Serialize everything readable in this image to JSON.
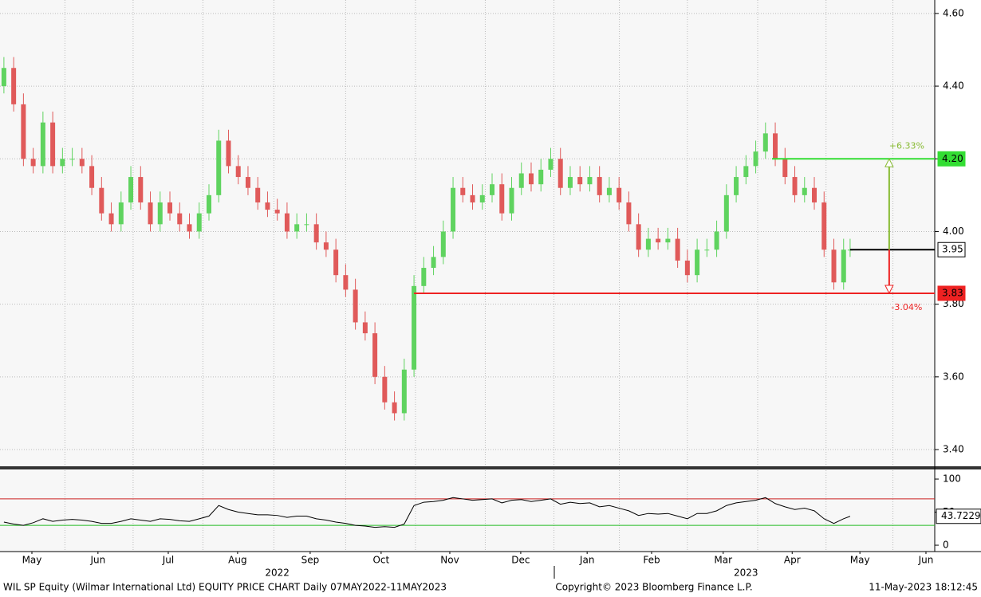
{
  "chart_data": {
    "type": "candlestick",
    "xlim": [
      -1.2,
      286
    ],
    "xticks": [
      {
        "value": 8.6,
        "label": "May"
      },
      {
        "value": 28.9,
        "label": "Jun"
      },
      {
        "value": 50.5,
        "label": "Jul"
      },
      {
        "value": 71.8,
        "label": "Aug"
      },
      {
        "value": 94.1,
        "label": "Sep"
      },
      {
        "value": 115.9,
        "label": "Oct"
      },
      {
        "value": 137,
        "label": "Nov"
      },
      {
        "value": 158.8,
        "label": "Dec"
      },
      {
        "value": 179.2,
        "label": "Jan"
      },
      {
        "value": 199,
        "label": "Feb"
      },
      {
        "value": 221,
        "label": "Mar"
      },
      {
        "value": 242.2,
        "label": "Apr"
      },
      {
        "value": 263,
        "label": "May"
      },
      {
        "value": 283.3,
        "label": "Jun"
      }
    ],
    "years": [
      {
        "value": 84,
        "label": "2022"
      },
      {
        "value": 228,
        "label": "2023"
      }
    ],
    "ylim": [
      3.354,
      4.637
    ],
    "yticks": [
      {
        "value": 3.4,
        "label": "3.40"
      },
      {
        "value": 3.6,
        "label": "3.60"
      },
      {
        "value": 3.8,
        "label": "3.80"
      },
      {
        "value": 4.0,
        "label": "4.00"
      },
      {
        "value": 4.2,
        "label": "4.20"
      },
      {
        "value": 4.4,
        "label": "4.40"
      },
      {
        "value": 4.6,
        "label": "4.60"
      }
    ],
    "grid": true,
    "up_color": "#5fd35f",
    "down_color": "#e05a5a",
    "candles": {
      "x": [
        0,
        3,
        6,
        9,
        12,
        15,
        18,
        21,
        24,
        27,
        30,
        33,
        36,
        39,
        42,
        45,
        48,
        51,
        54,
        57,
        60,
        63,
        66,
        69,
        72,
        75,
        78,
        81,
        84,
        87,
        90,
        93,
        96,
        99,
        102,
        105,
        108,
        111,
        114,
        117,
        120,
        123,
        126,
        129,
        132,
        135,
        138,
        141,
        144,
        147,
        150,
        153,
        156,
        159,
        162,
        165,
        168,
        171,
        174,
        177,
        180,
        183,
        186,
        189,
        192,
        195,
        198,
        201,
        204,
        207,
        210,
        213,
        216,
        219,
        222,
        225,
        228,
        231,
        234,
        237,
        240,
        243,
        246,
        249,
        252,
        255,
        258,
        260
      ],
      "open": [
        4.4,
        4.45,
        4.35,
        4.2,
        4.18,
        4.3,
        4.18,
        4.2,
        4.2,
        4.18,
        4.12,
        4.05,
        4.02,
        4.08,
        4.15,
        4.08,
        4.02,
        4.08,
        4.05,
        4.02,
        4.0,
        4.05,
        4.1,
        4.25,
        4.18,
        4.15,
        4.12,
        4.08,
        4.06,
        4.05,
        4.0,
        4.02,
        4.02,
        3.97,
        3.95,
        3.88,
        3.84,
        3.75,
        3.72,
        3.6,
        3.53,
        3.5,
        3.62,
        3.85,
        3.9,
        3.93,
        4.0,
        4.12,
        4.1,
        4.08,
        4.1,
        4.13,
        4.05,
        4.12,
        4.16,
        4.13,
        4.17,
        4.2,
        4.12,
        4.15,
        4.13,
        4.15,
        4.1,
        4.12,
        4.08,
        4.02,
        3.95,
        3.98,
        3.97,
        3.98,
        3.92,
        3.88,
        3.95,
        3.95,
        4.0,
        4.1,
        4.15,
        4.18,
        4.22,
        4.27,
        4.2,
        4.15,
        4.1,
        4.12,
        4.08,
        3.95,
        3.86,
        3.95
      ],
      "high": [
        4.48,
        4.48,
        4.38,
        4.23,
        4.33,
        4.33,
        4.23,
        4.23,
        4.23,
        4.21,
        4.15,
        4.08,
        4.11,
        4.18,
        4.18,
        4.11,
        4.11,
        4.11,
        4.08,
        4.05,
        4.08,
        4.13,
        4.28,
        4.28,
        4.21,
        4.18,
        4.15,
        4.11,
        4.09,
        4.08,
        4.05,
        4.05,
        4.05,
        4.0,
        3.98,
        3.91,
        3.87,
        3.78,
        3.75,
        3.63,
        3.56,
        3.65,
        3.88,
        3.93,
        3.96,
        4.03,
        4.15,
        4.15,
        4.13,
        4.13,
        4.16,
        4.16,
        4.15,
        4.19,
        4.19,
        4.2,
        4.23,
        4.23,
        4.18,
        4.18,
        4.18,
        4.18,
        4.15,
        4.15,
        4.11,
        4.05,
        4.01,
        4.01,
        4.01,
        4.01,
        3.95,
        3.98,
        3.98,
        4.03,
        4.13,
        4.18,
        4.21,
        4.25,
        4.3,
        4.3,
        4.23,
        4.18,
        4.15,
        4.15,
        4.11,
        3.98,
        3.98,
        3.98
      ],
      "low": [
        4.38,
        4.33,
        4.18,
        4.16,
        4.16,
        4.16,
        4.16,
        4.18,
        4.16,
        4.1,
        4.03,
        4.0,
        4.0,
        4.06,
        4.06,
        4.0,
        4.0,
        4.03,
        4.0,
        3.98,
        3.98,
        4.03,
        4.08,
        4.16,
        4.13,
        4.1,
        4.06,
        4.04,
        4.03,
        3.98,
        3.98,
        4.0,
        3.95,
        3.93,
        3.86,
        3.82,
        3.73,
        3.7,
        3.58,
        3.51,
        3.48,
        3.48,
        3.6,
        3.83,
        3.88,
        3.91,
        3.98,
        4.08,
        4.06,
        4.06,
        4.08,
        4.03,
        4.03,
        4.1,
        4.11,
        4.11,
        4.15,
        4.1,
        4.1,
        4.11,
        4.11,
        4.08,
        4.08,
        4.06,
        4.0,
        3.93,
        3.93,
        3.95,
        3.95,
        3.9,
        3.86,
        3.86,
        3.93,
        3.93,
        3.98,
        4.08,
        4.13,
        4.16,
        4.2,
        4.18,
        4.13,
        4.08,
        4.08,
        4.06,
        3.93,
        3.84,
        3.84,
        3.93
      ],
      "close": [
        4.45,
        4.35,
        4.2,
        4.18,
        4.3,
        4.18,
        4.2,
        4.2,
        4.18,
        4.12,
        4.05,
        4.02,
        4.08,
        4.15,
        4.08,
        4.02,
        4.08,
        4.05,
        4.02,
        4.0,
        4.05,
        4.1,
        4.25,
        4.18,
        4.15,
        4.12,
        4.08,
        4.06,
        4.05,
        4.0,
        4.02,
        4.02,
        3.97,
        3.95,
        3.88,
        3.84,
        3.75,
        3.72,
        3.6,
        3.53,
        3.5,
        3.62,
        3.85,
        3.9,
        3.93,
        4.0,
        4.12,
        4.1,
        4.08,
        4.1,
        4.13,
        4.05,
        4.12,
        4.16,
        4.13,
        4.17,
        4.2,
        4.12,
        4.15,
        4.13,
        4.15,
        4.1,
        4.12,
        4.08,
        4.02,
        3.95,
        3.98,
        3.97,
        3.98,
        3.92,
        3.88,
        3.95,
        3.95,
        4.0,
        4.1,
        4.15,
        4.18,
        4.22,
        4.27,
        4.2,
        4.15,
        4.1,
        4.12,
        4.08,
        3.95,
        3.86,
        3.95,
        3.95
      ]
    },
    "levels": [
      {
        "value": 4.2,
        "label": "4.20",
        "color": "#33dd33",
        "from": 236
      },
      {
        "value": 3.95,
        "label": "3.95",
        "color": "#000000",
        "from": 260
      },
      {
        "value": 3.83,
        "label": "3.83",
        "color": "#ee2222",
        "from": 126
      }
    ],
    "annotations": [
      {
        "text": "+6.33%",
        "color": "#88bb33"
      },
      {
        "text": "-3.04%",
        "color": "#ee2222"
      }
    ],
    "rsi": {
      "ylim": [
        -9.6,
        113.3
      ],
      "yticks": [
        0,
        50,
        100
      ],
      "bands": [
        {
          "value": 70,
          "color": "#cc2222"
        },
        {
          "value": 30,
          "color": "#22bb22"
        }
      ],
      "values": [
        35,
        32,
        30,
        34,
        40,
        36,
        38,
        39,
        38,
        36,
        33,
        33,
        36,
        40,
        38,
        36,
        40,
        39,
        37,
        36,
        40,
        44,
        60,
        54,
        50,
        48,
        46,
        46,
        45,
        42,
        44,
        44,
        40,
        38,
        35,
        33,
        30,
        29,
        27,
        28,
        27,
        32,
        60,
        65,
        66,
        68,
        72,
        70,
        68,
        69,
        70,
        64,
        68,
        69,
        66,
        68,
        70,
        62,
        65,
        63,
        64,
        58,
        60,
        56,
        52,
        45,
        48,
        47,
        48,
        44,
        40,
        48,
        48,
        52,
        60,
        64,
        66,
        68,
        72,
        63,
        58,
        54,
        56,
        52,
        40,
        33,
        40,
        43.7229
      ]
    },
    "footer": {
      "left": "WIL SP Equity (Wilmar International Ltd) EQUITY PRICE CHART  Daily 07MAY2022-11MAY2023",
      "center": "Copyright© 2023 Bloomberg Finance L.P.",
      "right": "11-May-2023 18:12:45"
    }
  }
}
